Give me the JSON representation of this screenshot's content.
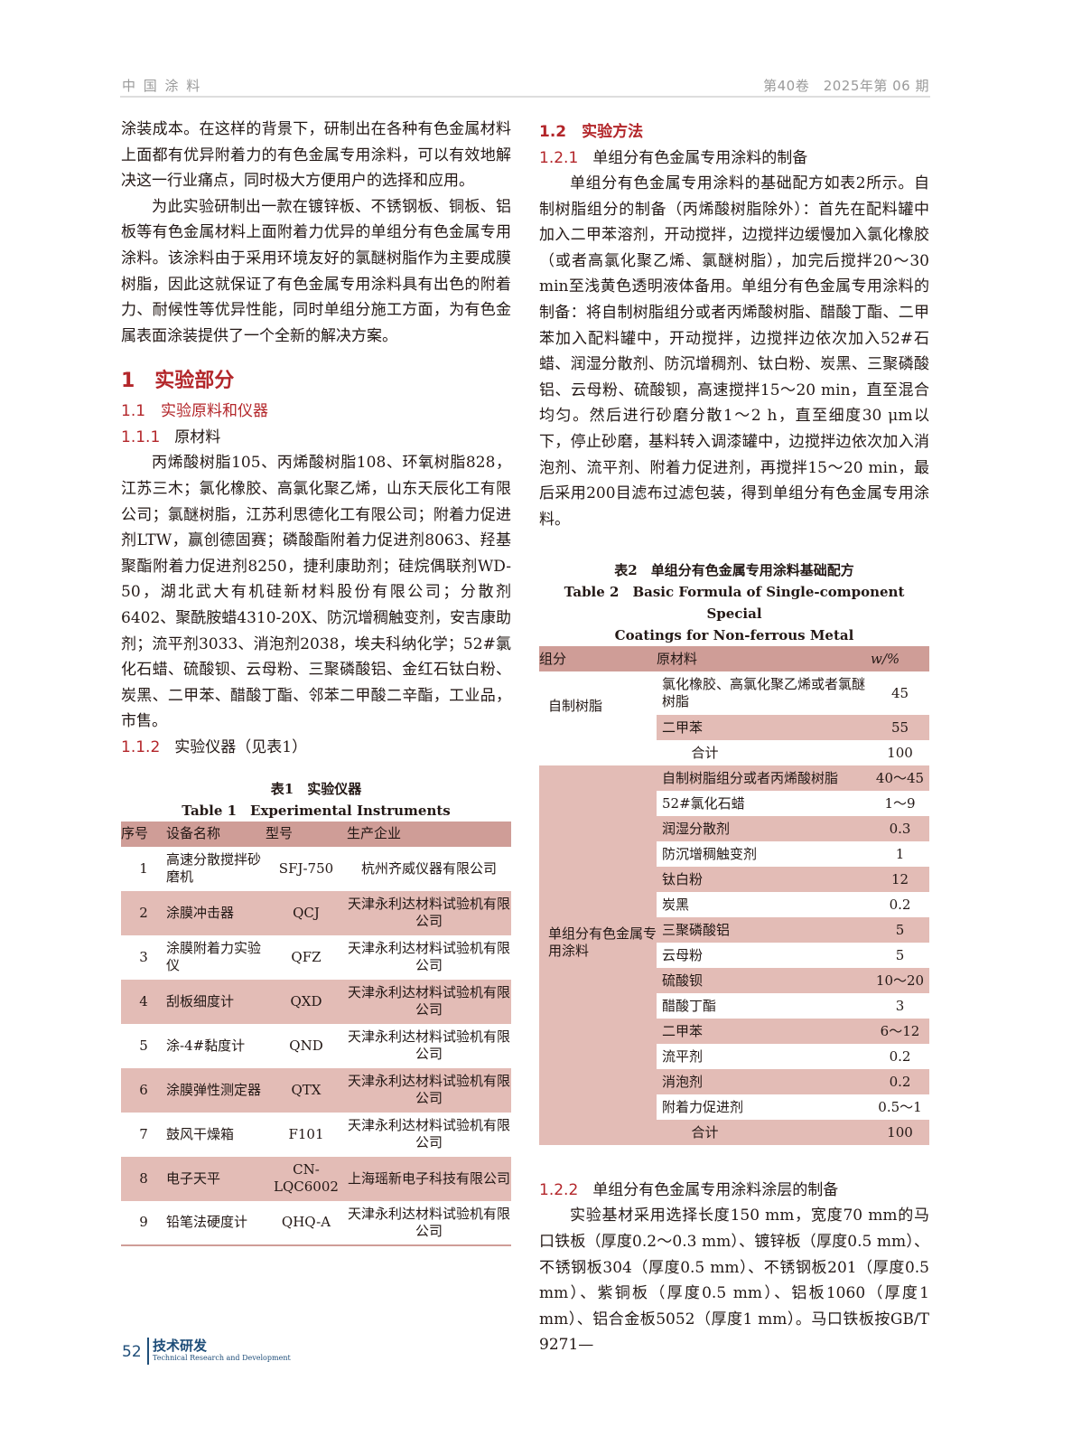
{
  "header": {
    "journal": "中 国 涂 料",
    "issue": "第40卷　2025年第 06 期"
  },
  "left": {
    "p1": "涂装成本。在这样的背景下，研制出在各种有色金属材料上面都有优异附着力的有色金属专用涂料，可以有效地解决这一行业痛点，同时极大方便用户的选择和应用。",
    "p2": "为此实验研制出一款在镀锌板、不锈钢板、铜板、铝板等有色金属材料上面附着力优异的单组分有色金属专用涂料。该涂料由于采用环境友好的氯醚树脂作为主要成膜树脂，因此这就保证了有色金属专用涂料具有出色的附着力、耐候性等优异性能，同时单组分施工方面，为有色金属表面涂装提供了一个全新的解决方案。",
    "h1": "1　实验部分",
    "h11": "1.1　实验原料和仪器",
    "h111_num": "1.1.1",
    "h111": "原材料",
    "p3": "丙烯酸树脂105、丙烯酸树脂108、环氧树脂828，江苏三木；氯化橡胶、高氯化聚乙烯，山东天辰化工有限公司；氯醚树脂，江苏利思德化工有限公司；附着力促进剂LTW，赢创德固赛；磷酸酯附着力促进剂8063、羟基聚酯附着力促进剂8250，捷利康助剂；硅烷偶联剂WD-50，湖北武大有机硅新材料股份有限公司；分散剂6402、聚酰胺蜡4310-20X、防沉增稠触变剂，安吉康助剂；流平剂3033、消泡剂2038，埃夫科纳化学；52#氯化石蜡、硫酸钡、云母粉、三聚磷酸铝、金红石钛白粉、炭黑、二甲苯、醋酸丁酯、邻苯二甲酸二辛酯，工业品，市售。",
    "h112_num": "1.1.2",
    "h112": "实验仪器（见表1）"
  },
  "table1": {
    "title_cn": "表1　实验仪器",
    "title_en": "Table 1　Experimental Instruments",
    "headers": [
      "序号",
      "设备名称",
      "型号",
      "生产企业"
    ],
    "rows": [
      [
        "1",
        "高速分散搅拌砂磨机",
        "SFJ-750",
        "杭州齐威仪器有限公司"
      ],
      [
        "2",
        "涂膜冲击器",
        "QCJ",
        "天津永利达材料试验机有限公司"
      ],
      [
        "3",
        "涂膜附着力实验仪",
        "QFZ",
        "天津永利达材料试验机有限公司"
      ],
      [
        "4",
        "刮板细度计",
        "QXD",
        "天津永利达材料试验机有限公司"
      ],
      [
        "5",
        "涂-4#黏度计",
        "QND",
        "天津永利达材料试验机有限公司"
      ],
      [
        "6",
        "涂膜弹性测定器",
        "QTX",
        "天津永利达材料试验机有限公司"
      ],
      [
        "7",
        "鼓风干燥箱",
        "F101",
        "天津永利达材料试验机有限公司"
      ],
      [
        "8",
        "电子天平",
        "CN-LQC6002",
        "上海瑶新电子科技有限公司"
      ],
      [
        "9",
        "铅笔法硬度计",
        "QHQ-A",
        "天津永利达材料试验机有限公司"
      ]
    ]
  },
  "right": {
    "h12": "1.2　实验方法",
    "h121_num": "1.2.1",
    "h121": "单组分有色金属专用涂料的制备",
    "p1": "单组分有色金属专用涂料的基础配方如表2所示。自制树脂组分的制备（丙烯酸树脂除外）：首先在配料罐中加入二甲苯溶剂，开动搅拌，边搅拌边缓慢加入氯化橡胶（或者高氯化聚乙烯、氯醚树脂），加完后搅拌20～30 min至浅黄色透明液体备用。单组分有色金属专用涂料的制备：将自制树脂组分或者丙烯酸树脂、醋酸丁酯、二甲苯加入配料罐中，开动搅拌，边搅拌边依次加入52#石蜡、润湿分散剂、防沉增稠剂、钛白粉、炭黑、三聚磷酸铝、云母粉、硫酸钡，高速搅拌15～20 min，直至混合均匀。然后进行砂磨分散1～2 h，直至细度30 μm以下，停止砂磨，基料转入调漆罐中，边搅拌边依次加入消泡剂、流平剂、附着力促进剂，再搅拌15～20 min，最后采用200目滤布过滤包装，得到单组分有色金属专用涂料。",
    "h122_num": "1.2.2",
    "h122": "单组分有色金属专用涂料涂层的制备",
    "p2": "实验基材采用选择长度150 mm，宽度70 mm的马口铁板（厚度0.2～0.3 mm）、镀锌板（厚度0.5 mm）、不锈钢板304（厚度0.5 mm）、不锈钢板201（厚度0.5 mm）、紫铜板（厚度0.5 mm）、铝板1060（厚度1 mm）、铝合金板5052（厚度1 mm）。马口铁板按GB/T 9271—"
  },
  "table2": {
    "title_cn": "表2　单组分有色金属专用涂料基础配方",
    "title_en1": "Table 2　Basic Formula of Single-component Special",
    "title_en2": "Coatings for Non-ferrous Metal",
    "headers": [
      "组分",
      "原材料",
      "w/%"
    ],
    "group1": {
      "name": "自制树脂",
      "rows": [
        [
          "氯化橡胶、高氯化聚乙烯或者氯醚树脂",
          "45"
        ],
        [
          "二甲苯",
          "55"
        ]
      ],
      "total": [
        "合计",
        "100"
      ]
    },
    "group2": {
      "name": "单组分有色金属专用涂料",
      "rows": [
        [
          "自制树脂组分或者丙烯酸树脂",
          "40～45"
        ],
        [
          "52#氯化石蜡",
          "1～9"
        ],
        [
          "润湿分散剂",
          "0.3"
        ],
        [
          "防沉增稠触变剂",
          "1"
        ],
        [
          "钛白粉",
          "12"
        ],
        [
          "炭黑",
          "0.2"
        ],
        [
          "三聚磷酸铝",
          "5"
        ],
        [
          "云母粉",
          "5"
        ],
        [
          "硫酸钡",
          "10～20"
        ],
        [
          "醋酸丁酯",
          "3"
        ],
        [
          "二甲苯",
          "6～12"
        ],
        [
          "流平剂",
          "0.2"
        ],
        [
          "消泡剂",
          "0.2"
        ],
        [
          "附着力促进剂",
          "0.5～1"
        ]
      ],
      "total": [
        "合计",
        "100"
      ]
    }
  },
  "footer": {
    "page": "52",
    "section_cn": "技术研发",
    "section_en": "Technical Research and Development"
  },
  "colors": {
    "accent": "#b3262a",
    "table_header": "#cf9d97",
    "table_stripe": "#e3bcb6"
  }
}
